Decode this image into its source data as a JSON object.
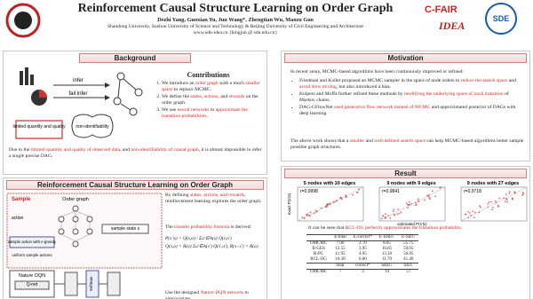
{
  "header": {
    "title": "Reinforcement Causal Structure Learning on Order Graph",
    "authors": "Dezhi Yang, Guoxian Yu, Jun Wang*, Zhengtian Wu, Maozu Guo",
    "affiliation": "Shandong University, Suzhou University of Science and Technology & Beijing University of Civil Engineering and Architecture",
    "email": "www.sdu-idea.cn {kingjun @ sdu.edu.cn}",
    "logos": [
      "C-FAIR",
      "SDE",
      "IDEA"
    ]
  },
  "background": {
    "heading": "Background",
    "diagram_labels": [
      "infer",
      "fail infer",
      "limited quantity and quality",
      "non-identifiability"
    ],
    "contributions_heading": "Contributions",
    "contributions": [
      [
        "We introduce an ",
        "order graph",
        " with a much ",
        "smaller space",
        " to replace MCMC."
      ],
      [
        "We define the ",
        "states, actions",
        ", and ",
        "rewards",
        " on the order graph."
      ],
      [
        "We use ",
        "neural networks",
        " to ",
        "approximate the transition probabilities",
        "."
      ]
    ],
    "summary": [
      "Due to the ",
      "limited quantity and quality of observed data",
      ", and ",
      "non-identifiability of causal graph",
      ", it is almost impossible to infer a single precise DAG."
    ]
  },
  "method": {
    "heading": "Reinforcement Causal Structure Learning on Order Graph",
    "diagram_labels": [
      "Sample",
      "Order graph",
      "action",
      "sample state s",
      "sample action with ε-greedy",
      "uniform sample actions",
      "Nature DQN",
      "Q-net",
      "Softmax"
    ],
    "text1": [
      "By defining ",
      "states, actions, and rewards",
      ", reinforcement learning explores the order graph."
    ],
    "text2": [
      "The ",
      "transfer probability formula",
      " is derived:"
    ],
    "formula": [
      "P(s'|s) = Q(s,a) / Σa'∈A(s) Q(s,a')",
      "Q(s,a) = R(a) Σa'∈A(s') Q(s',a'), R(s−s') = R(a)"
    ],
    "text3": [
      "Use the designed ",
      "Nature DQN network",
      " to approximate"
    ]
  },
  "motivation": {
    "heading": "Motivation",
    "intro": "In recent years, MCMC-based algorithms have been continuously improved or refined:",
    "bullets": [
      [
        "Friedman and Koller proposed an MCMC sampler in the space of node orders to ",
        "reduce the search space",
        " and ",
        "avoid slow mixing",
        ", but also introduced a bias."
      ],
      [
        "Kuipers and Moffa further refined these methods by ",
        "modifying the underlying space of local transition",
        " of Markov chains."
      ],
      [
        "DAG-GFlowNet ",
        "used generative flow network instead of MCMC",
        " and approximated posterior of DAGs with deep learning."
      ]
    ],
    "outro": [
      "The above work shows that a ",
      "smaller",
      " and ",
      "well-defined search space",
      " can help MCMC-based algorithms better sample possible graph structures."
    ]
  },
  "result": {
    "heading": "Result",
    "plots": [
      {
        "title": "5 nodes with 10 edges",
        "r": "r=0.9998"
      },
      {
        "title": "9 nodes with 9 edges",
        "r": "r=0.9841"
      },
      {
        "title": "9 nodes with 27 edges",
        "r": "r=0.9718"
      }
    ],
    "xlabel": "estimated P(s'|s)",
    "ylabel": "exact P(s'|s)",
    "caption": [
      "It can be seen that ",
      "RCL-OG",
      " ",
      "perfectly approximates the transition probability",
      "."
    ],
    "table": {
      "header": [
        "E-total",
        "E-correct*",
        "E-SHD↓",
        "E-SID↓"
      ],
      "rows": [
        [
          "OMCMC",
          "7.00",
          "2.70",
          "8.65",
          "55.75"
        ],
        [
          "B-GES",
          "12.55",
          "3.95",
          "16.85",
          "59.05"
        ],
        [
          "B-PC",
          "11.95",
          "4.95",
          "13.10",
          "56.95"
        ],
        [
          "RCL-OG",
          "10.30",
          "6.60",
          "11.70",
          "41.40"
        ]
      ],
      "header2": [
        "total",
        "correct*",
        "SHD↓",
        "SID↓"
      ],
      "rows2": [
        [
          "OMCMC",
          "7",
          "3",
          "14",
          "57"
        ]
      ]
    }
  }
}
